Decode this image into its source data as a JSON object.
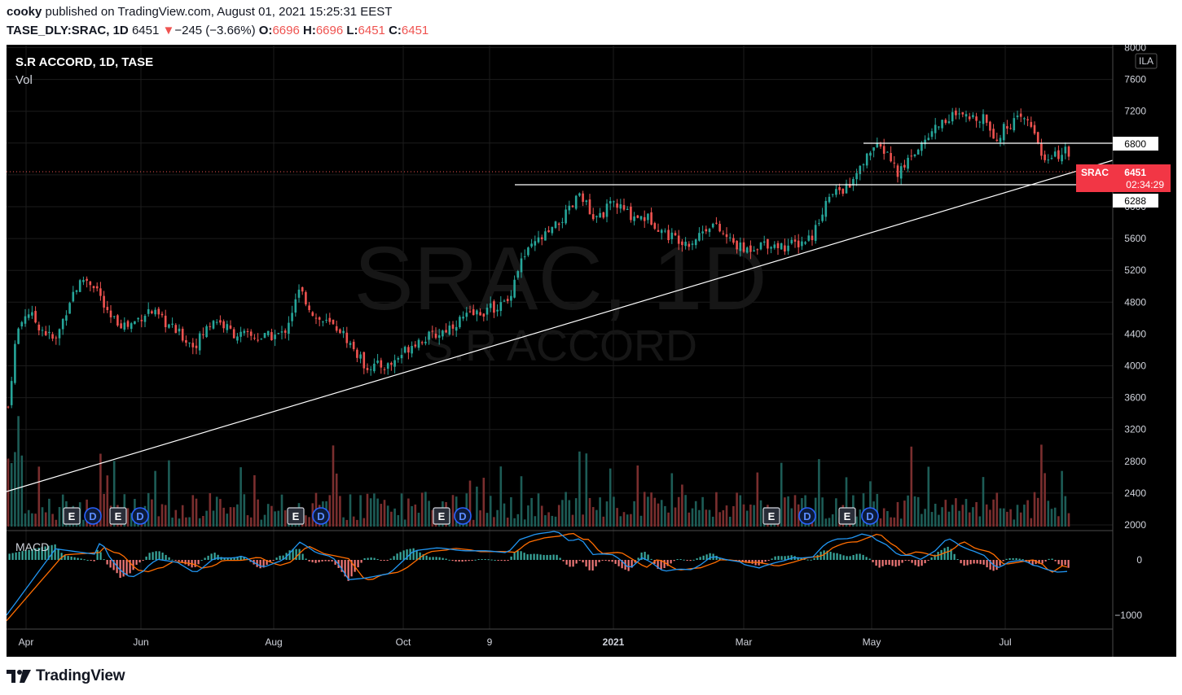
{
  "header": {
    "author": "cooky",
    "published_text": "published on TradingView.com, August 01, 2021 15:25:31 EEST",
    "symbol_line": "TASE_DLY:SRAC, 1D",
    "last": "6451",
    "change_arrow": "▼",
    "change": "−245 (−3.66%)",
    "o_label": "O:",
    "o_val": "6696",
    "h_label": "H:",
    "h_val": "6696",
    "l_label": "L:",
    "l_val": "6451",
    "c_label": "C:",
    "c_val": "6451"
  },
  "legend": {
    "title": "S.R ACCORD, 1D, TASE",
    "vol": "Vol",
    "macd": "MACD",
    "currency": "ILA"
  },
  "watermark": {
    "symbol": "SRAC, 1D",
    "name": "S.R ACCORD"
  },
  "price_axis": {
    "ticks": [
      "8000",
      "7600",
      "7200",
      "6800",
      "6400",
      "6000",
      "5600",
      "5200",
      "4800",
      "4400",
      "4000",
      "3600",
      "3200",
      "2800",
      "2400",
      "2000"
    ]
  },
  "macd_axis": {
    "ticks": [
      "0",
      "−1000"
    ]
  },
  "time_axis": {
    "labels": [
      "Apr",
      "Jun",
      "Aug",
      "Oct",
      "9",
      "2021",
      "Mar",
      "May",
      "Jul"
    ]
  },
  "price_tags": {
    "level_6800": "6800",
    "symbol": "SRAC",
    "last": "6451",
    "countdown": "02:34:29",
    "level_6288": "6288"
  },
  "events": [
    "E",
    "D",
    "E",
    "D",
    "E",
    "D",
    "E",
    "D",
    "E",
    "D"
  ],
  "colors": {
    "up": "#26a69a",
    "down": "#ef5350",
    "line": "#ffffff",
    "macd": "#2196f3",
    "signal": "#ff6d00",
    "tag_red": "#f23645"
  },
  "footer": {
    "brand": "TradingView"
  },
  "chart_data": {
    "type": "candlestick",
    "symbol": "TASE_DLY:SRAC",
    "interval": "1D",
    "ylim": [
      2000,
      8000
    ],
    "closes": [
      {
        "x": "Apr",
        "y": 4500
      },
      {
        "x": "Apr-mid",
        "y": 4700
      },
      {
        "x": "May",
        "y": 5100
      },
      {
        "x": "May-end",
        "y": 4600
      },
      {
        "x": "Jun",
        "y": 4550
      },
      {
        "x": "Jul",
        "y": 4350
      },
      {
        "x": "Aug",
        "y": 4450
      },
      {
        "x": "Aug-mid",
        "y": 4700
      },
      {
        "x": "Sep",
        "y": 4250
      },
      {
        "x": "Oct",
        "y": 4200
      },
      {
        "x": "Oct-end",
        "y": 4450
      },
      {
        "x": "Nov",
        "y": 4650
      },
      {
        "x": "Dec",
        "y": 5600
      },
      {
        "x": "Dec-end",
        "y": 6150
      },
      {
        "x": "2021",
        "y": 5950
      },
      {
        "x": "Feb",
        "y": 5650
      },
      {
        "x": "Mar",
        "y": 5550
      },
      {
        "x": "Apr-21",
        "y": 6100
      },
      {
        "x": "May-21",
        "y": 6500
      },
      {
        "x": "Jun-21",
        "y": 7100
      },
      {
        "x": "Jul-21",
        "y": 6700
      },
      {
        "x": "last",
        "y": 6451
      }
    ],
    "horizontal_levels": [
      6800,
      6288
    ],
    "trendline": "rising support from ~2400 (Apr 2020) to ~6450 (Jul 2021)"
  }
}
